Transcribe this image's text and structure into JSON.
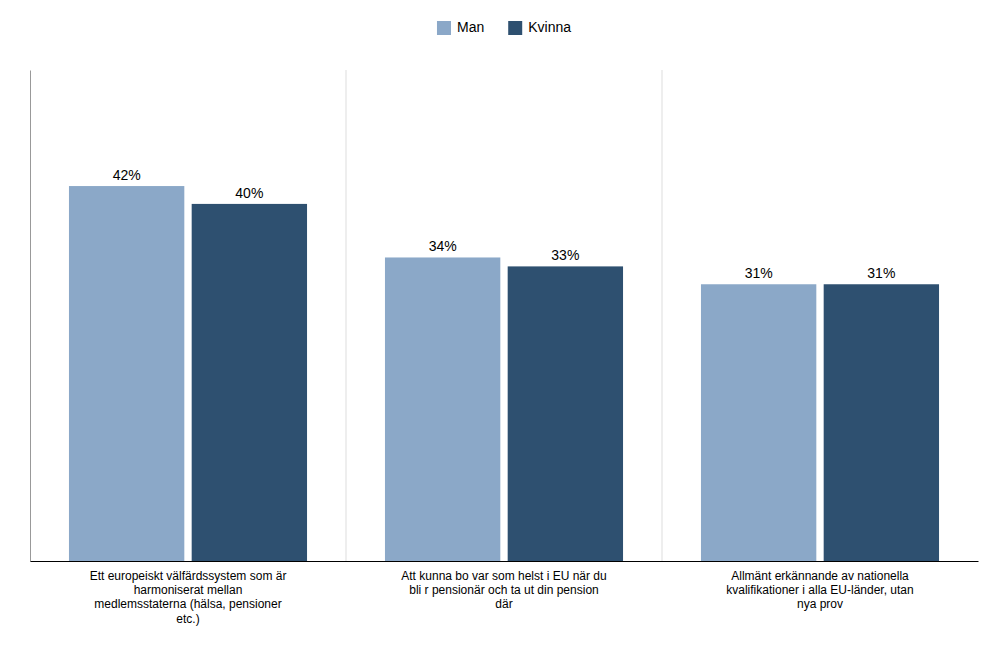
{
  "chart_data": {
    "type": "bar",
    "categories": [
      "Ett europeiskt välfärdssystem som är\nharmoniserat mellan\nmedlemsstaterna (hälsa, pensioner\netc.)",
      "Att kunna bo var som helst i EU när du\nbli r pensionär och ta ut din pension\ndär",
      "Allmänt erkännande av nationella\nkvalifikationer i alla EU-länder, utan\nnya prov"
    ],
    "series": [
      {
        "name": "Man",
        "color": "#8BA8C8",
        "values": [
          42,
          34,
          31
        ],
        "value_labels": [
          "42%",
          "34%",
          "31%"
        ]
      },
      {
        "name": "Kvinna",
        "color": "#2E5070",
        "values": [
          40,
          33,
          31
        ],
        "value_labels": [
          "40%",
          "33%",
          "31%"
        ]
      }
    ],
    "ylim": [
      0,
      55
    ],
    "data_labels": true,
    "tick_labels": "x",
    "grid": false,
    "legend": "top"
  }
}
